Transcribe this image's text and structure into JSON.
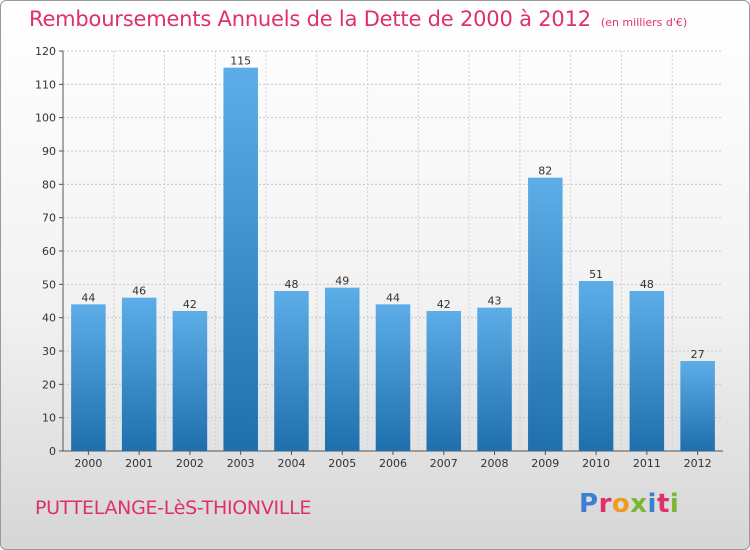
{
  "chart_data": {
    "type": "bar",
    "title": "Remboursements Annuels de la Dette de 2000 à 2012",
    "subtitle": "(en milliers d'€)",
    "categories": [
      "2000",
      "2001",
      "2002",
      "2003",
      "2004",
      "2005",
      "2006",
      "2007",
      "2008",
      "2009",
      "2010",
      "2011",
      "2012"
    ],
    "values": [
      44,
      46,
      42,
      115,
      48,
      49,
      44,
      42,
      43,
      82,
      51,
      48,
      27
    ],
    "ylim": [
      0,
      120
    ],
    "yticks": [
      0,
      10,
      20,
      30,
      40,
      50,
      60,
      70,
      80,
      90,
      100,
      110,
      120
    ],
    "grid": true,
    "bar_color_top": "#5dade8",
    "bar_color_bottom": "#1f6fae",
    "xlabel": "",
    "ylabel": ""
  },
  "footer": {
    "commune": "PUTTELANGE-LèS-THIONVILLE",
    "logo": "Proxiti"
  },
  "colors": {
    "accent": "#e0306a",
    "logo_letters": [
      "#3a7fd0",
      "#e0306a",
      "#f29a1f",
      "#7cb82f",
      "#3a7fd0",
      "#e0306a",
      "#7cb82f"
    ]
  }
}
